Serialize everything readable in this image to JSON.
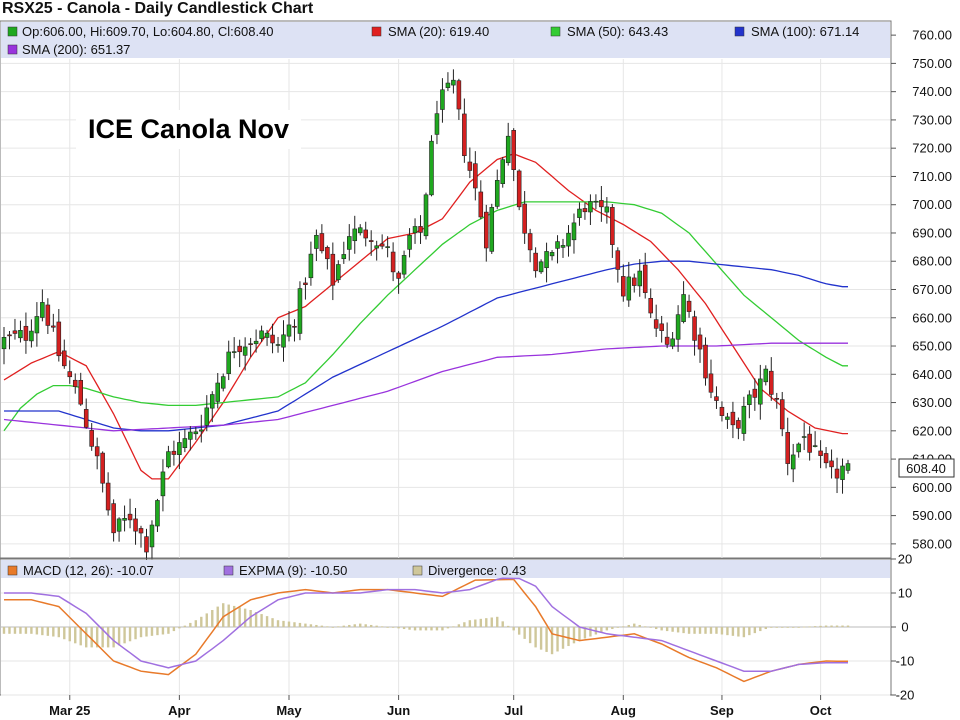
{
  "chart_title": "RSX25 - Canola - Daily Candlestick Chart",
  "overlay_label": "ICE Canola Nov",
  "colors": {
    "up": "#1fa81f",
    "down": "#d42020",
    "wick": "#222222",
    "sma20": "#e02020",
    "sma50": "#33cc33",
    "sma100": "#2233cc",
    "sma200": "#9933dd",
    "macd": "#e87a2a",
    "expma": "#a070e0",
    "divergence": "#cfc79a",
    "legend_bg": "#dde2f4",
    "grid": "#e6e6e6"
  },
  "legend": {
    "ohlc": "Op:606.00, Hi:609.70, Lo:604.80, Cl:608.40",
    "sma20": "SMA (20): 619.40",
    "sma50": "SMA (50): 643.43",
    "sma100": "SMA (100): 671.14",
    "sma200": "SMA (200): 651.37",
    "macd": "MACD (12, 26): -10.07",
    "expma": "EXPMA (9): -10.50",
    "divergence": "Divergence: 0.43"
  },
  "last_price_label": "608.40",
  "chart_data": [
    {
      "type": "candlestick",
      "title": "RSX25 - Canola - Daily Candlestick Chart",
      "ylim": [
        575,
        765
      ],
      "y_ticks": [
        "760.00",
        "750.00",
        "740.00",
        "730.00",
        "720.00",
        "710.00",
        "700.00",
        "690.00",
        "680.00",
        "670.00",
        "660.00",
        "650.00",
        "640.00",
        "630.00",
        "620.00",
        "610.00",
        "600.00",
        "590.00",
        "580.00"
      ],
      "x_ticks": [
        "Mar 25",
        "Apr",
        "May",
        "Jun",
        "Jul",
        "Aug",
        "Sep",
        "Oct"
      ],
      "x_tick_index": [
        12,
        32,
        52,
        72,
        93,
        113,
        131,
        149
      ],
      "num_bars": 155,
      "close_anchors": [
        [
          0,
          652
        ],
        [
          4,
          654
        ],
        [
          7,
          666
        ],
        [
          10,
          647
        ],
        [
          14,
          630
        ],
        [
          17,
          609
        ],
        [
          20,
          584
        ],
        [
          23,
          590
        ],
        [
          26,
          580
        ],
        [
          30,
          612
        ],
        [
          33,
          616
        ],
        [
          36,
          623
        ],
        [
          39,
          638
        ],
        [
          42,
          650
        ],
        [
          47,
          654
        ],
        [
          50,
          650
        ],
        [
          53,
          660
        ],
        [
          57,
          688
        ],
        [
          60,
          673
        ],
        [
          63,
          690
        ],
        [
          67,
          690
        ],
        [
          70,
          683
        ],
        [
          72,
          672
        ],
        [
          74,
          688
        ],
        [
          76,
          690
        ],
        [
          79,
          735
        ],
        [
          82,
          742
        ],
        [
          84,
          720
        ],
        [
          86,
          705
        ],
        [
          88,
          688
        ],
        [
          90,
          708
        ],
        [
          92,
          727
        ],
        [
          94,
          698
        ],
        [
          97,
          680
        ],
        [
          100,
          681
        ],
        [
          103,
          690
        ],
        [
          106,
          700
        ],
        [
          110,
          696
        ],
        [
          113,
          670
        ],
        [
          116,
          675
        ],
        [
          118,
          660
        ],
        [
          121,
          650
        ],
        [
          124,
          668
        ],
        [
          126,
          655
        ],
        [
          129,
          635
        ],
        [
          131,
          625
        ],
        [
          133,
          620
        ],
        [
          136,
          630
        ],
        [
          139,
          640
        ],
        [
          141,
          630
        ],
        [
          143,
          610
        ],
        [
          146,
          618
        ],
        [
          149,
          608
        ],
        [
          151,
          604
        ],
        [
          154,
          608
        ]
      ],
      "last_ohlc": {
        "open": 606.0,
        "high": 609.7,
        "low": 604.8,
        "close": 608.4
      },
      "series": [
        {
          "name": "SMA (20)",
          "key": "sma20",
          "x": [
            0,
            5,
            10,
            15,
            20,
            25,
            27,
            30,
            35,
            40,
            45,
            50,
            55,
            60,
            65,
            70,
            75,
            80,
            85,
            90,
            93,
            97,
            103,
            108,
            113,
            118,
            123,
            128,
            133,
            138,
            143,
            148,
            153
          ],
          "y": [
            638,
            644,
            648,
            643,
            626,
            606,
            603,
            603,
            616,
            630,
            646,
            660,
            664,
            672,
            680,
            688,
            690,
            695,
            708,
            716,
            718,
            715,
            705,
            698,
            693,
            687,
            677,
            665,
            650,
            635,
            627,
            621,
            619
          ]
        },
        {
          "name": "SMA (50)",
          "key": "sma50",
          "x": [
            0,
            3,
            6,
            9,
            12,
            15,
            20,
            25,
            30,
            35,
            40,
            45,
            50,
            55,
            60,
            65,
            70,
            75,
            80,
            85,
            90,
            95,
            100,
            105,
            110,
            115,
            120,
            125,
            130,
            135,
            140,
            145,
            150,
            153
          ],
          "y": [
            620,
            628,
            633,
            636,
            636,
            635,
            632,
            630,
            629,
            629,
            630,
            631,
            632,
            637,
            647,
            658,
            668,
            677,
            686,
            693,
            698,
            701,
            701,
            701,
            701,
            700,
            697,
            690,
            679,
            668,
            660,
            652,
            646,
            643
          ]
        },
        {
          "name": "SMA (100)",
          "key": "sma100",
          "x": [
            0,
            10,
            20,
            25,
            30,
            40,
            50,
            60,
            70,
            80,
            90,
            100,
            110,
            115,
            120,
            125,
            130,
            135,
            140,
            145,
            150,
            153
          ],
          "y": [
            627,
            627,
            621,
            620,
            620,
            622,
            627,
            639,
            648,
            657,
            667,
            672,
            677,
            679,
            680,
            680,
            679,
            678,
            677,
            675,
            672,
            671
          ]
        },
        {
          "name": "SMA (200)",
          "key": "sma200",
          "x": [
            0,
            10,
            20,
            30,
            40,
            50,
            60,
            70,
            80,
            90,
            100,
            110,
            120,
            130,
            140,
            150,
            153
          ],
          "y": [
            624,
            622,
            620,
            621,
            622,
            624,
            629,
            634,
            641,
            646,
            647,
            649,
            650,
            650,
            651,
            651,
            651
          ]
        }
      ]
    },
    {
      "type": "line",
      "title": "",
      "ylim": [
        -20,
        20
      ],
      "y_ticks": [
        20,
        10,
        0,
        -10,
        -20
      ],
      "series": [
        {
          "name": "MACD (12, 26)",
          "key": "macd",
          "x": [
            0,
            5,
            10,
            15,
            20,
            25,
            30,
            35,
            40,
            45,
            50,
            55,
            60,
            65,
            70,
            75,
            80,
            85,
            90,
            93,
            97,
            100,
            105,
            110,
            115,
            120,
            125,
            130,
            135,
            140,
            145,
            150,
            153
          ],
          "y": [
            8,
            8,
            6,
            -2,
            -10,
            -13,
            -14,
            -8,
            3,
            8,
            10,
            11,
            10,
            11,
            11,
            10,
            9,
            13,
            17,
            14,
            6,
            -2,
            -4,
            -3,
            -2,
            -5,
            -9,
            -12,
            -16,
            -13,
            -11,
            -10,
            -10.07
          ]
        },
        {
          "name": "EXPMA (9)",
          "key": "expma",
          "x": [
            0,
            5,
            10,
            15,
            20,
            25,
            30,
            35,
            40,
            45,
            50,
            55,
            60,
            65,
            70,
            75,
            80,
            85,
            90,
            93,
            97,
            100,
            105,
            110,
            115,
            120,
            125,
            130,
            135,
            140,
            145,
            150,
            153
          ],
          "y": [
            10,
            10,
            9,
            4,
            -4,
            -10,
            -12,
            -10,
            -4,
            3,
            8,
            10,
            10,
            10,
            11,
            11,
            10,
            11,
            14,
            15,
            12,
            6,
            0,
            -2,
            -3,
            -4,
            -7,
            -10,
            -13,
            -13,
            -11,
            -10.5,
            -10.5
          ]
        },
        {
          "name": "Divergence",
          "key": "divergence",
          "type": "bar",
          "x": [
            0,
            5,
            10,
            15,
            20,
            25,
            30,
            35,
            40,
            45,
            50,
            55,
            60,
            65,
            70,
            75,
            80,
            85,
            90,
            93,
            97,
            100,
            105,
            110,
            115,
            120,
            125,
            130,
            135,
            140,
            145,
            150,
            153
          ],
          "y": [
            -2,
            -2,
            -3,
            -6,
            -6,
            -3,
            -2,
            2,
            7,
            5,
            2,
            1,
            0,
            1,
            0,
            -1,
            -1,
            2,
            3,
            -1,
            -6,
            -8,
            -4,
            -1,
            1,
            -1,
            -2,
            -2,
            -3,
            0,
            0,
            0.43,
            0.43
          ]
        }
      ]
    }
  ]
}
